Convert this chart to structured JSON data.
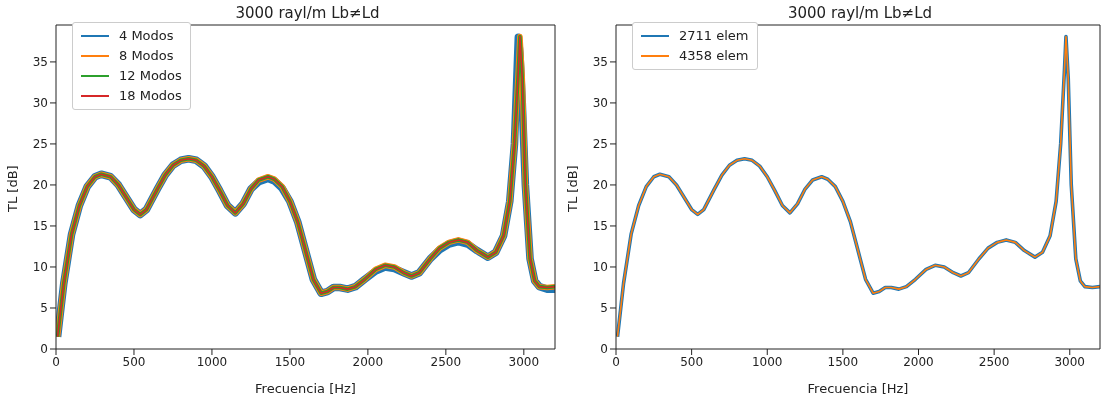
{
  "chart_data": [
    {
      "type": "line",
      "title": "3000 rayl/m Lb≠Ld",
      "xlabel": "Frecuencia [Hz]",
      "ylabel": "TL [dB]",
      "x": [
        10,
        50,
        100,
        150,
        200,
        250,
        290,
        350,
        400,
        450,
        500,
        540,
        580,
        650,
        700,
        750,
        800,
        850,
        900,
        950,
        1000,
        1050,
        1100,
        1150,
        1200,
        1250,
        1300,
        1360,
        1400,
        1450,
        1500,
        1550,
        1600,
        1650,
        1700,
        1740,
        1780,
        1820,
        1870,
        1920,
        1980,
        2050,
        2110,
        2170,
        2230,
        2280,
        2330,
        2400,
        2460,
        2520,
        2580,
        2640,
        2700,
        2770,
        2820,
        2870,
        2910,
        2940,
        2965,
        2975,
        2990,
        3010,
        3040,
        3070,
        3100,
        3150,
        3200
      ],
      "series": [
        {
          "name": "4 Modos",
          "color": "#1f77b4",
          "values": [
            1.5,
            8,
            14,
            17.5,
            19.8,
            21,
            21.3,
            21,
            20,
            18.5,
            17,
            16.4,
            17,
            19.5,
            21.2,
            22.4,
            23,
            23.2,
            23,
            22.3,
            21,
            19.3,
            17.5,
            16.6,
            17.7,
            19.5,
            20.4,
            20.8,
            20.5,
            19.6,
            18,
            15.5,
            12,
            8.5,
            6.8,
            7,
            7.5,
            7.5,
            7.3,
            7.6,
            8.5,
            9.5,
            10,
            9.8,
            9.3,
            8.9,
            9.3,
            11,
            12.1,
            12.8,
            13.1,
            12.8,
            12,
            11.2,
            11.8,
            13.8,
            18,
            25,
            38,
            36,
            30,
            20,
            11,
            8.3,
            7.6,
            7.3,
            7.3
          ]
        },
        {
          "name": "8 Modos",
          "color": "#ff7f0e",
          "values": [
            1.5,
            8,
            14,
            17.5,
            19.8,
            21,
            21.3,
            21,
            20,
            18.5,
            17,
            16.4,
            17,
            19.5,
            21.2,
            22.4,
            23,
            23.2,
            23,
            22.3,
            21,
            19.3,
            17.5,
            16.6,
            17.7,
            19.5,
            20.6,
            21,
            20.7,
            19.8,
            18,
            15.5,
            12,
            8.5,
            6.8,
            7,
            7.5,
            7.5,
            7.3,
            7.6,
            8.5,
            9.7,
            10.2,
            10,
            9.3,
            8.9,
            9.3,
            11,
            12.3,
            13,
            13.3,
            13,
            12,
            11.2,
            11.8,
            13.8,
            18,
            25,
            34,
            38.1,
            33,
            20,
            11,
            8.3,
            7.6,
            7.5,
            7.6
          ]
        },
        {
          "name": "12 Modos",
          "color": "#2ca02c",
          "values": [
            1.5,
            8,
            14,
            17.5,
            19.8,
            21,
            21.3,
            21,
            20,
            18.5,
            17,
            16.4,
            17,
            19.5,
            21.2,
            22.4,
            23,
            23.2,
            23,
            22.3,
            21,
            19.3,
            17.5,
            16.6,
            17.7,
            19.5,
            20.6,
            21,
            20.7,
            19.8,
            18,
            15.5,
            12,
            8.5,
            6.8,
            7,
            7.5,
            7.5,
            7.3,
            7.6,
            8.5,
            9.7,
            10.2,
            10,
            9.3,
            8.9,
            9.3,
            11,
            12.3,
            13,
            13.3,
            13,
            12,
            11.2,
            11.8,
            13.8,
            18,
            25,
            34,
            38.1,
            33,
            20,
            11,
            8.3,
            7.6,
            7.5,
            7.6
          ]
        },
        {
          "name": "18 Modos",
          "color": "#d62728",
          "values": [
            1.5,
            8,
            14,
            17.5,
            19.8,
            21,
            21.3,
            21,
            20,
            18.5,
            17,
            16.4,
            17,
            19.5,
            21.2,
            22.4,
            23,
            23.2,
            23,
            22.3,
            21,
            19.3,
            17.5,
            16.6,
            17.7,
            19.5,
            20.6,
            21,
            20.7,
            19.8,
            18,
            15.5,
            12,
            8.5,
            6.8,
            7,
            7.5,
            7.5,
            7.3,
            7.6,
            8.5,
            9.7,
            10.2,
            10,
            9.3,
            8.9,
            9.3,
            11,
            12.3,
            13,
            13.3,
            13,
            12,
            11.2,
            11.8,
            13.8,
            18,
            25,
            34,
            38.1,
            33,
            20,
            11,
            8.3,
            7.6,
            7.5,
            7.6
          ]
        }
      ],
      "xlim": [
        0,
        3200
      ],
      "xticks": [
        0,
        500,
        1000,
        1500,
        2000,
        2500,
        3000
      ],
      "ylim": [
        0,
        39.5
      ],
      "yticks": [
        0,
        5,
        10,
        15,
        20,
        25,
        30,
        35
      ],
      "legend": "top left",
      "grid": false
    },
    {
      "type": "line",
      "title": "3000 rayl/m Lb≠Ld",
      "xlabel": "Frecuencia [Hz]",
      "ylabel": "TL [dB]",
      "x": [
        10,
        50,
        100,
        150,
        200,
        250,
        290,
        350,
        400,
        450,
        500,
        540,
        580,
        650,
        700,
        750,
        800,
        850,
        900,
        950,
        1000,
        1050,
        1100,
        1150,
        1200,
        1250,
        1300,
        1360,
        1400,
        1450,
        1500,
        1550,
        1600,
        1650,
        1700,
        1740,
        1780,
        1820,
        1870,
        1920,
        1980,
        2050,
        2110,
        2170,
        2230,
        2280,
        2330,
        2400,
        2460,
        2520,
        2580,
        2640,
        2700,
        2770,
        2820,
        2870,
        2910,
        2940,
        2965,
        2975,
        2990,
        3010,
        3040,
        3070,
        3100,
        3150,
        3200
      ],
      "series": [
        {
          "name": "2711 elem",
          "color": "#1f77b4",
          "values": [
            1.5,
            8,
            14,
            17.5,
            19.8,
            21,
            21.3,
            21,
            20,
            18.5,
            17,
            16.4,
            17,
            19.5,
            21.2,
            22.4,
            23,
            23.2,
            23,
            22.3,
            21,
            19.3,
            17.5,
            16.6,
            17.7,
            19.5,
            20.6,
            21,
            20.7,
            19.8,
            18,
            15.5,
            12,
            8.5,
            6.8,
            7,
            7.5,
            7.5,
            7.3,
            7.6,
            8.5,
            9.7,
            10.2,
            10,
            9.3,
            8.9,
            9.3,
            11,
            12.3,
            13,
            13.3,
            13,
            12,
            11.2,
            11.8,
            13.8,
            18,
            25,
            34,
            38.1,
            33,
            20,
            11,
            8.3,
            7.6,
            7.5,
            7.6
          ]
        },
        {
          "name": "4358 elem",
          "color": "#ff7f0e",
          "values": [
            1.5,
            8,
            14,
            17.5,
            19.8,
            21,
            21.3,
            21,
            20,
            18.5,
            17,
            16.4,
            17,
            19.5,
            21.2,
            22.4,
            23,
            23.2,
            23,
            22.3,
            21,
            19.3,
            17.5,
            16.6,
            17.7,
            19.5,
            20.6,
            21,
            20.7,
            19.8,
            18,
            15.5,
            12,
            8.5,
            6.8,
            7,
            7.5,
            7.5,
            7.3,
            7.6,
            8.5,
            9.7,
            10.2,
            10,
            9.3,
            8.9,
            9.3,
            11,
            12.3,
            13,
            13.3,
            13,
            12,
            11.2,
            11.8,
            13.8,
            18,
            25,
            34,
            38.1,
            33,
            20,
            11,
            8.3,
            7.6,
            7.5,
            7.6
          ]
        }
      ],
      "xlim": [
        0,
        3200
      ],
      "xticks": [
        0,
        500,
        1000,
        1500,
        2000,
        2500,
        3000
      ],
      "ylim": [
        0,
        39.5
      ],
      "yticks": [
        0,
        5,
        10,
        15,
        20,
        25,
        30,
        35
      ],
      "legend": "top left",
      "grid": false
    }
  ]
}
